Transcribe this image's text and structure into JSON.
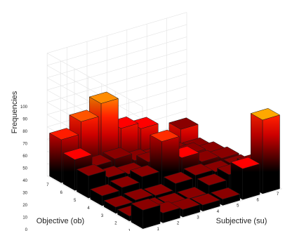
{
  "chart_data": {
    "type": "bar3d",
    "zlabel": "Frequencies",
    "xlabel": "Subjective (su)",
    "ylabel": "Objective (ob)",
    "x_ticks": [
      "1",
      "2",
      "3",
      "4",
      "5",
      "6",
      "7"
    ],
    "y_ticks": [
      "1",
      "2",
      "3",
      "4",
      "5",
      "6",
      "7"
    ],
    "z_ticks": [
      "0",
      "10",
      "20",
      "30",
      "40",
      "50",
      "60",
      "70",
      "80",
      "90",
      "100"
    ],
    "zlim": [
      0,
      100
    ],
    "grid": true,
    "colormap": "hot",
    "grid_values": [
      [
        15,
        8,
        6,
        5,
        5,
        25,
        60
      ],
      [
        4,
        5,
        4,
        4,
        10,
        14,
        17
      ],
      [
        5,
        6,
        5,
        10,
        12,
        10,
        10
      ],
      [
        8,
        10,
        14,
        38,
        20,
        12,
        10
      ],
      [
        18,
        12,
        10,
        15,
        15,
        12,
        8
      ],
      [
        25,
        15,
        16,
        10,
        8,
        6,
        5
      ],
      [
        35,
        45,
        55,
        30,
        25,
        5,
        15
      ]
    ]
  }
}
